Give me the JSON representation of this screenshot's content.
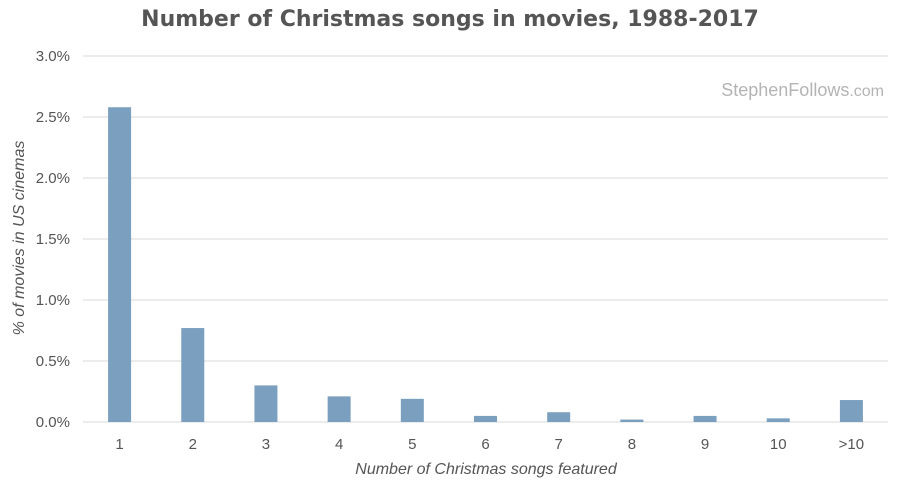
{
  "chart_data": {
    "type": "bar",
    "title": "Number of Christmas songs in movies, 1988-2017",
    "xlabel": "Number of Christmas songs featured",
    "ylabel": "% of movies in US cinemas",
    "categories": [
      "1",
      "2",
      "3",
      "4",
      "5",
      "6",
      "7",
      "8",
      "9",
      "10",
      ">10"
    ],
    "values": [
      2.58,
      0.77,
      0.3,
      0.21,
      0.19,
      0.05,
      0.08,
      0.02,
      0.05,
      0.03,
      0.18
    ],
    "value_unit": "%",
    "ylim": [
      0,
      3.0
    ],
    "yticks": [
      "0.0%",
      "0.5%",
      "1.0%",
      "1.5%",
      "2.0%",
      "2.5%",
      "3.0%"
    ],
    "grid": true,
    "bar_color": "#7b9fbf",
    "watermark": {
      "name": "StephenFollows",
      "tld": ".com"
    }
  }
}
